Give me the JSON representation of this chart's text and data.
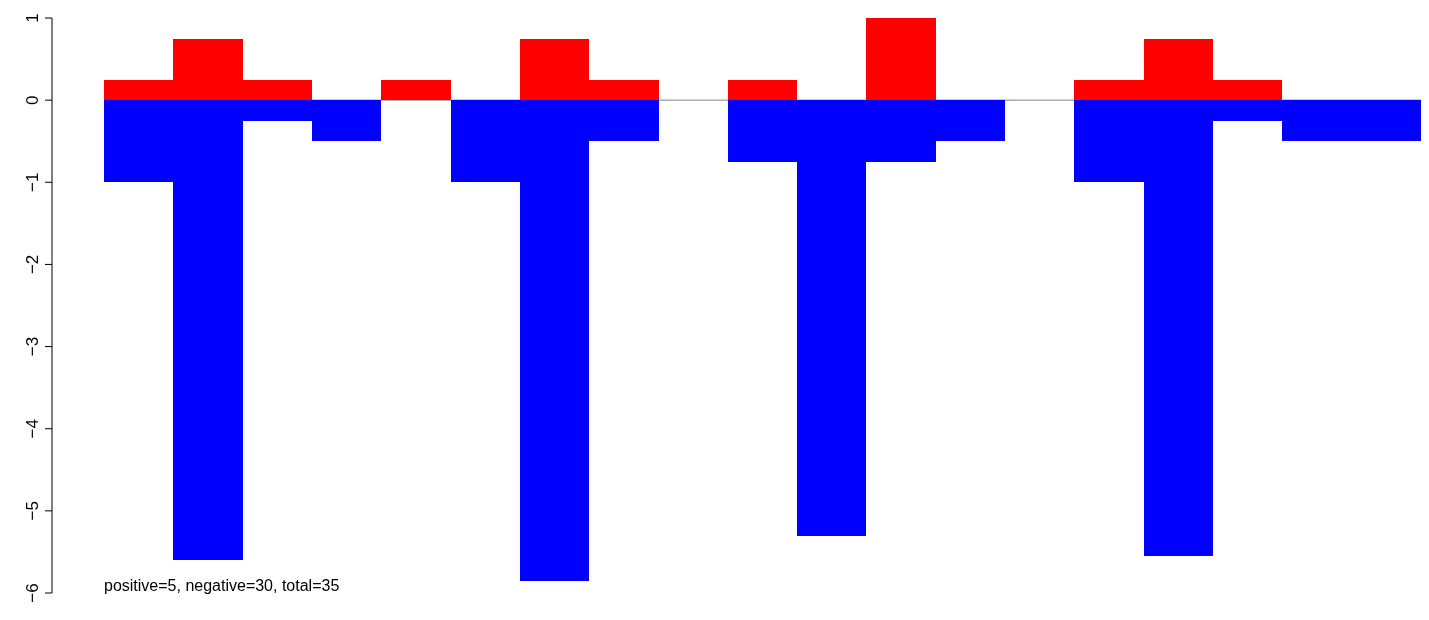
{
  "chart_data": {
    "type": "bar",
    "stacked": true,
    "categories": [
      null,
      null,
      null,
      null,
      null,
      null,
      null,
      null,
      null,
      null,
      null,
      null,
      null,
      null,
      null,
      null,
      null,
      null,
      null
    ],
    "series": [
      {
        "color": "#ff0000",
        "values": [
          0.25,
          0.75,
          0.25,
          0,
          0.25,
          0,
          0.75,
          0.25,
          0,
          0.25,
          0,
          1,
          0,
          0,
          0.25,
          0.75,
          0.25,
          0,
          0
        ]
      },
      {
        "color": "#0000ff",
        "values": [
          -1,
          -5.6,
          -0.25,
          -0.5,
          0,
          -1,
          -5.85,
          -0.5,
          0,
          -0.75,
          -5.3,
          -0.75,
          -0.5,
          0,
          -1,
          -5.55,
          -0.25,
          -0.5,
          -0.5
        ]
      }
    ],
    "ylim": [
      -6,
      1
    ],
    "yticks": [
      -6,
      -5,
      -4,
      -3,
      -2,
      -1,
      0,
      1
    ],
    "tick_labels": "y",
    "ref_lines": [
      {
        "axis": "y",
        "value": 0,
        "color": "#808080"
      }
    ],
    "annotations": [
      "positive=5, negative=30, total=35"
    ]
  }
}
